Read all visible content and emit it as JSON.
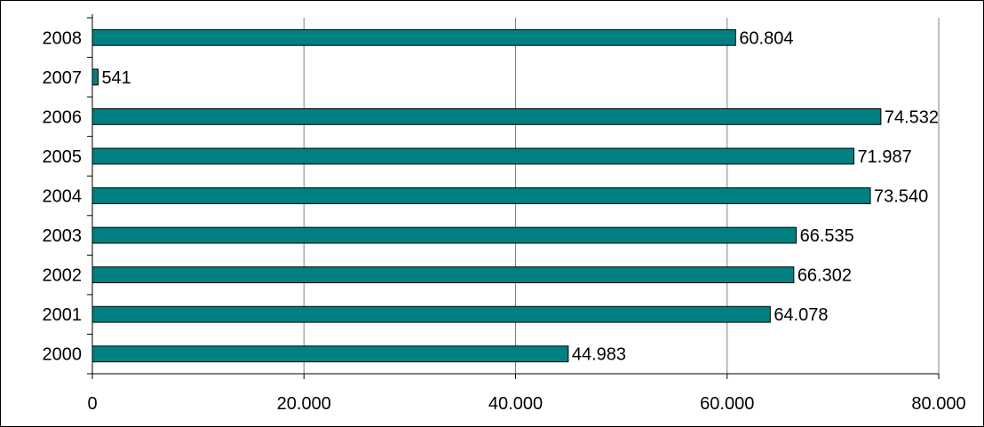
{
  "chart_data": {
    "type": "bar",
    "orientation": "horizontal",
    "categories": [
      "2000",
      "2001",
      "2002",
      "2003",
      "2004",
      "2005",
      "2006",
      "2007",
      "2008"
    ],
    "values": [
      44983,
      64078,
      66302,
      66535,
      73540,
      71987,
      74532,
      541,
      60804
    ],
    "data_labels": [
      "44.983",
      "64.078",
      "66.302",
      "66.535",
      "73.540",
      "71.987",
      "74.532",
      "541",
      "60.804"
    ],
    "x_ticks": [
      0,
      20000,
      40000,
      60000,
      80000
    ],
    "x_tick_labels": [
      "0",
      "20.000",
      "40.000",
      "60.000",
      "80.000"
    ],
    "xlim": [
      0,
      80000
    ],
    "grid": "vertical",
    "legend": "none",
    "colors": {
      "bar_fill": "#008080",
      "bar_stroke": "#000000",
      "grid": "#808080",
      "axis": "#000000",
      "text": "#000000"
    }
  }
}
